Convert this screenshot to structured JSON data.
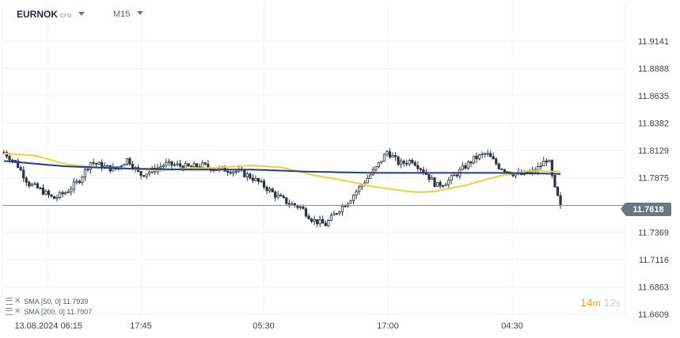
{
  "toolbar": {
    "symbol": "EURNOK",
    "symbol_type": "CFD",
    "interval": "M15",
    "symbol_caret_icon": "caret-down-icon",
    "interval_caret_icon": "caret-down-icon"
  },
  "colors": {
    "candle": "#2b3442",
    "sma50": "#f2cf3a",
    "sma200": "#243a8c",
    "grid": "#eef0f3",
    "price_line": "#8a8f99",
    "badge_bg": "#6e7480",
    "countdown": "#f0a020"
  },
  "legend": [
    {
      "icon": "indicator-settings-icon",
      "close_icon": "close-icon",
      "text": "SMA [50, 0] 11.7939"
    },
    {
      "icon": "indicator-settings-icon",
      "close_icon": "close-icon",
      "text": "SMA [200, 0] 11.7907"
    }
  ],
  "countdown": {
    "minutes": "14",
    "minutes_unit": "m",
    "seconds": "12",
    "seconds_unit": "s"
  },
  "current_price": "11.7618",
  "chart_data": {
    "type": "candlestick",
    "symbol": "EURNOK",
    "interval": "M15",
    "y_ticks": [
      "11.9141",
      "11.8888",
      "11.8635",
      "11.8382",
      "11.8129",
      "11.7875",
      "11.7369",
      "11.7116",
      "11.6863",
      "11.6609"
    ],
    "x_ticks": [
      "13.08.2024 06:15",
      "17:45",
      "05:30",
      "17:00",
      "04:30"
    ],
    "ylim": [
      11.6609,
      11.9141
    ],
    "grid": true,
    "last_price": 11.7618,
    "candle_count": 200,
    "sma_50": 11.7939,
    "sma_200": 11.7907,
    "close_path": [
      [
        0,
        11.811
      ],
      [
        8,
        11.801
      ],
      [
        16,
        11.782
      ],
      [
        24,
        11.776
      ],
      [
        32,
        11.768
      ],
      [
        40,
        11.774
      ],
      [
        48,
        11.784
      ],
      [
        56,
        11.802
      ],
      [
        64,
        11.798
      ],
      [
        72,
        11.795
      ],
      [
        80,
        11.805
      ],
      [
        88,
        11.79
      ],
      [
        96,
        11.794
      ],
      [
        104,
        11.8
      ],
      [
        112,
        11.799
      ],
      [
        120,
        11.797
      ],
      [
        128,
        11.799
      ],
      [
        136,
        11.796
      ],
      [
        144,
        11.795
      ],
      [
        152,
        11.793
      ],
      [
        160,
        11.788
      ],
      [
        168,
        11.78
      ],
      [
        176,
        11.771
      ],
      [
        184,
        11.764
      ],
      [
        192,
        11.76
      ],
      [
        200,
        11.748
      ],
      [
        208,
        11.744
      ],
      [
        216,
        11.757
      ],
      [
        224,
        11.768
      ],
      [
        232,
        11.782
      ],
      [
        240,
        11.795
      ],
      [
        248,
        11.812
      ],
      [
        256,
        11.8
      ],
      [
        264,
        11.804
      ],
      [
        272,
        11.793
      ],
      [
        280,
        11.78
      ],
      [
        288,
        11.785
      ],
      [
        296,
        11.795
      ],
      [
        304,
        11.805
      ],
      [
        312,
        11.81
      ],
      [
        320,
        11.798
      ],
      [
        328,
        11.792
      ],
      [
        336,
        11.79
      ],
      [
        344,
        11.794
      ],
      [
        352,
        11.806
      ],
      [
        356,
        11.778
      ],
      [
        360,
        11.7618
      ]
    ],
    "sma50_path": [
      [
        0,
        11.81
      ],
      [
        20,
        11.808
      ],
      [
        40,
        11.8
      ],
      [
        60,
        11.797
      ],
      [
        80,
        11.796
      ],
      [
        100,
        11.794
      ],
      [
        120,
        11.796
      ],
      [
        140,
        11.797
      ],
      [
        160,
        11.799
      ],
      [
        180,
        11.797
      ],
      [
        200,
        11.79
      ],
      [
        220,
        11.785
      ],
      [
        240,
        11.779
      ],
      [
        260,
        11.775
      ],
      [
        270,
        11.774
      ],
      [
        280,
        11.775
      ],
      [
        300,
        11.781
      ],
      [
        320,
        11.789
      ],
      [
        340,
        11.794
      ],
      [
        360,
        11.793
      ]
    ],
    "sma200_path": [
      [
        0,
        11.803
      ],
      [
        40,
        11.798
      ],
      [
        80,
        11.796
      ],
      [
        120,
        11.795
      ],
      [
        160,
        11.795
      ],
      [
        200,
        11.793
      ],
      [
        240,
        11.792
      ],
      [
        280,
        11.792
      ],
      [
        320,
        11.792
      ],
      [
        360,
        11.791
      ]
    ]
  }
}
